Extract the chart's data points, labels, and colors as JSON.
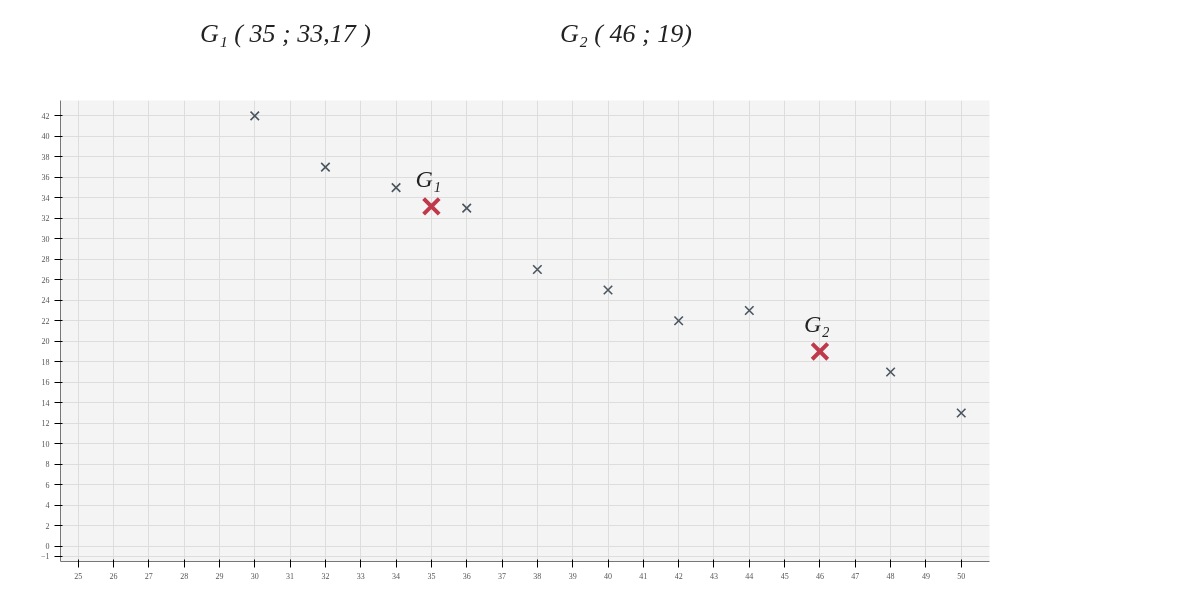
{
  "chart_data": {
    "type": "scatter",
    "marker": "cross",
    "grid": true,
    "xlim": [
      24.5,
      50.8
    ],
    "xticks": [
      25,
      26,
      27,
      28,
      29,
      30,
      31,
      32,
      33,
      34,
      35,
      36,
      37,
      38,
      39,
      40,
      41,
      42,
      43,
      44,
      45,
      46,
      47,
      48,
      49,
      50
    ],
    "ylim": [
      -1.5,
      43.5
    ],
    "yticks": [
      -1,
      0,
      2,
      4,
      6,
      8,
      10,
      12,
      14,
      16,
      18,
      20,
      22,
      24,
      26,
      28,
      30,
      32,
      34,
      36,
      38,
      40,
      42
    ],
    "series": [
      {
        "color": "#4a5560",
        "x": [
          30,
          32,
          34,
          36,
          38,
          40
        ],
        "values": [
          42,
          37,
          35,
          33,
          27,
          25
        ]
      },
      {
        "color": "#4a5560",
        "x": [
          42,
          44,
          48,
          50
        ],
        "values": [
          22,
          23,
          17,
          13
        ]
      },
      {
        "color": "#c0394b",
        "x": [
          35,
          46
        ],
        "values": [
          33.17,
          19
        ]
      }
    ],
    "annotations": [
      "G₁ ( 35 ; 33,17 )",
      "G₂ ( 46 ; 19)",
      {
        "text": "G₁",
        "x": 35,
        "y": 33.17
      },
      {
        "text": "G₂",
        "x": 46,
        "y": 19
      }
    ]
  }
}
